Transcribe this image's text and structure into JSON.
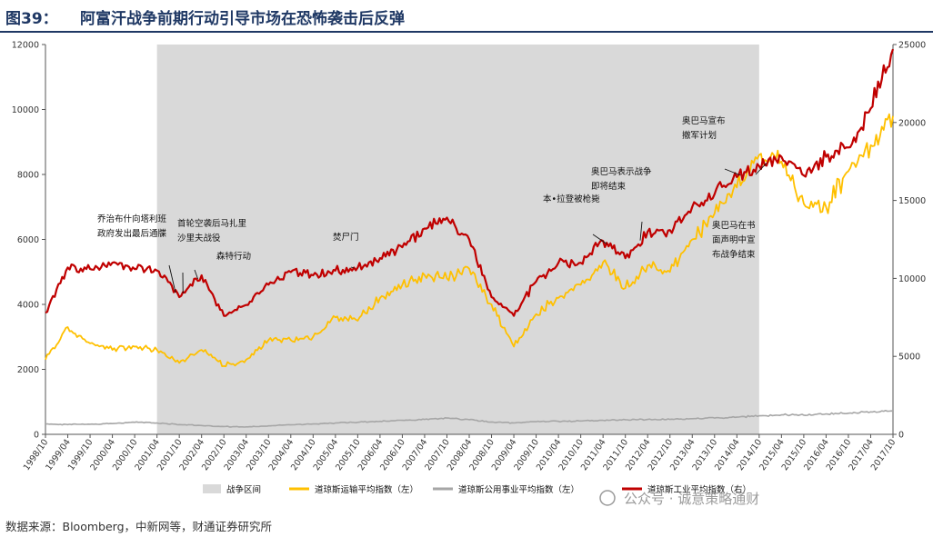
{
  "header": {
    "figure_label": "图39：",
    "title": "阿富汗战争前期行动引导市场在恐怖袭击后反弹"
  },
  "source_note": "数据来源：Bloomberg，中新网等，财通证券研究所",
  "watermark": "公众号 · 诚意策略通财",
  "colors": {
    "shade": "#d9d9d9",
    "industrial": "#c00000",
    "transport": "#ffc000",
    "utility": "#a6a6a6",
    "title": "#1f3864"
  },
  "chart_data": {
    "type": "line",
    "x_categories": [
      "1998/10",
      "1999/04",
      "1999/10",
      "2000/04",
      "2000/10",
      "2001/04",
      "2001/10",
      "2002/04",
      "2002/10",
      "2003/04",
      "2003/10",
      "2004/04",
      "2004/10",
      "2005/04",
      "2005/10",
      "2006/04",
      "2006/10",
      "2007/04",
      "2007/10",
      "2008/04",
      "2008/10",
      "2009/04",
      "2009/10",
      "2010/04",
      "2010/10",
      "2011/04",
      "2011/10",
      "2012/04",
      "2012/10",
      "2013/04",
      "2013/10",
      "2014/04",
      "2014/10",
      "2015/04",
      "2015/10",
      "2016/04",
      "2016/10",
      "2017/04",
      "2017/10"
    ],
    "left_axis": {
      "ticks": [
        "0",
        "2000",
        "4000",
        "6000",
        "8000",
        "10000",
        "12000"
      ],
      "range": [
        0,
        12000
      ]
    },
    "right_axis": {
      "ticks": [
        "0",
        "5000",
        "10000",
        "15000",
        "20000",
        "25000"
      ],
      "range": [
        0,
        25000
      ]
    },
    "shaded_period": {
      "label": "战争区间",
      "start": "2001/04",
      "end": "2014/10"
    },
    "series": [
      {
        "name": "道琼斯运输平均指数（左）",
        "axis": "left",
        "values": [
          2300,
          3300,
          2800,
          2600,
          2700,
          2600,
          2200,
          2600,
          2100,
          2300,
          2900,
          2900,
          3000,
          3600,
          3500,
          4200,
          4600,
          4900,
          4800,
          5100,
          4000,
          2700,
          3700,
          4200,
          4600,
          5300,
          4500,
          5200,
          5000,
          6000,
          6800,
          7600,
          8600,
          8400,
          7100,
          7000,
          8100,
          8900,
          9800
        ]
      },
      {
        "name": "道琼斯公用事业平均指数（左）",
        "axis": "left",
        "values": [
          320,
          300,
          310,
          330,
          370,
          350,
          300,
          270,
          240,
          230,
          260,
          290,
          320,
          350,
          370,
          400,
          430,
          460,
          500,
          450,
          380,
          350,
          390,
          400,
          410,
          430,
          450,
          460,
          460,
          480,
          500,
          530,
          570,
          600,
          590,
          630,
          650,
          690,
          720
        ]
      },
      {
        "name": "道琼斯工业平均指数（右）",
        "axis": "right",
        "values": [
          7800,
          10700,
          10600,
          11000,
          10600,
          10500,
          8800,
          10200,
          7600,
          8300,
          9600,
          10400,
          10200,
          10500,
          10700,
          11300,
          12000,
          13200,
          13900,
          12500,
          8800,
          7600,
          9800,
          11000,
          11000,
          12400,
          11300,
          13000,
          13100,
          14600,
          15400,
          16500,
          17200,
          17800,
          16600,
          17800,
          18400,
          20900,
          24700
        ]
      }
    ],
    "annotations": [
      {
        "lines": [
          "乔治布什向塔利班",
          "政府发出最后通牒"
        ],
        "date": "2001/09"
      },
      {
        "lines": [
          "首轮空袭后马扎里",
          "沙里夫战役"
        ],
        "date": "2001/11"
      },
      {
        "lines": [
          "森特行动"
        ],
        "date": "2002/03"
      },
      {
        "lines": [
          "焚尸门"
        ],
        "date": "2005/09"
      },
      {
        "lines": [
          "本•拉登被枪毙"
        ],
        "date": "2011/05"
      },
      {
        "lines": [
          "奥巴马表示战争",
          "即将结束"
        ],
        "date": "2012/02"
      },
      {
        "lines": [
          "奥巴马宣布",
          "撤军计划"
        ],
        "date": "2014/05"
      },
      {
        "lines": [
          "奥巴马在书",
          "面声明中宣",
          "布战争结束"
        ],
        "date": "2014/12"
      }
    ]
  }
}
